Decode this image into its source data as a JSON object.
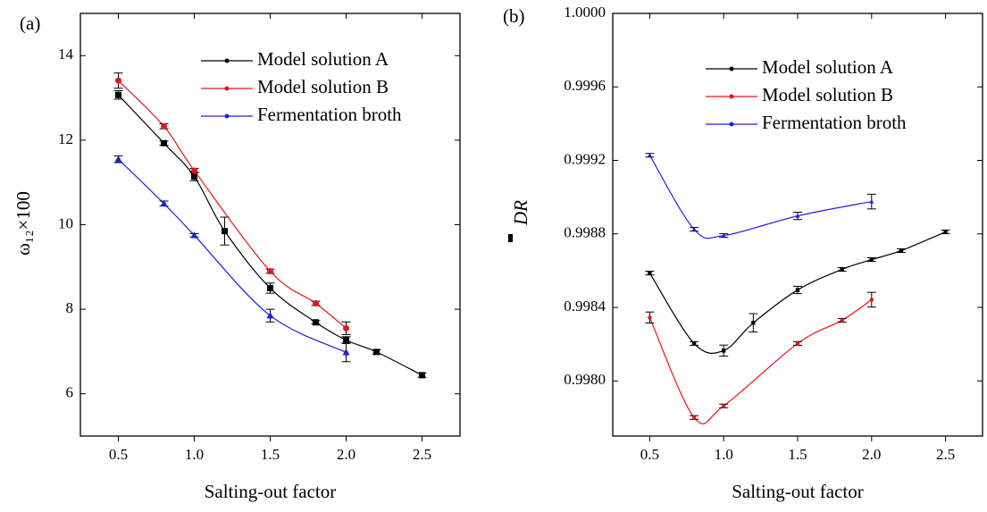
{
  "chart_data": [
    {
      "type": "line",
      "panel_label": "(a)",
      "x_label": "Salting-out factor",
      "y_label": "ω₁₂×100",
      "xlim": [
        0.25,
        2.75
      ],
      "xticks": [
        0.5,
        {
          "value": 1,
          "label": "1.0"
        },
        1.5,
        {
          "value": 2,
          "label": "2.0"
        },
        2.5
      ],
      "ylim": [
        5,
        15
      ],
      "yticks": [
        6,
        8,
        10,
        12,
        14
      ],
      "series": [
        {
          "name": "Model solution A",
          "color": "#000000",
          "marker": "square",
          "x": [
            0.5,
            0.8,
            1.0,
            1.2,
            1.5,
            1.8,
            2.0,
            2.2,
            2.5
          ],
          "values": [
            13.07,
            11.93,
            11.14,
            9.85,
            8.5,
            7.69,
            7.27,
            6.99,
            6.44
          ],
          "errors": [
            0.1,
            0.05,
            0.1,
            0.33,
            0.12,
            0.04,
            0.08,
            0.05,
            0.05
          ]
        },
        {
          "name": "Model solution B",
          "color": "#e8141a",
          "marker": "circle",
          "x": [
            0.5,
            0.8,
            1.0,
            1.5,
            1.8,
            2.0
          ],
          "values": [
            13.41,
            12.33,
            11.28,
            8.9,
            8.14,
            7.55
          ],
          "errors": [
            0.18,
            0.06,
            0.05,
            0.05,
            0.05,
            0.15
          ]
        },
        {
          "name": "Fermentation broth",
          "color": "#1f1fe0",
          "marker": "triangle",
          "x": [
            0.5,
            0.8,
            1.0,
            1.5,
            2.0
          ],
          "values": [
            11.55,
            10.5,
            9.75,
            7.85,
            6.98
          ],
          "errors": [
            0.08,
            0.06,
            0.04,
            0.15,
            0.22
          ]
        }
      ]
    },
    {
      "type": "line",
      "panel_label": "(b)",
      "x_label": "Salting-out factor",
      "y_label": "DR",
      "xlim": [
        0.25,
        2.75
      ],
      "xticks": [
        0.5,
        {
          "value": 1,
          "label": "1.0"
        },
        1.5,
        {
          "value": 2,
          "label": "2.0"
        },
        2.5
      ],
      "ylim": [
        0.9977,
        1.0
      ],
      "yticks": [
        {
          "value": 0.998,
          "label": "0.9980"
        },
        0.9984,
        0.9988,
        0.9992,
        0.9996,
        {
          "value": 1,
          "label": "1.0000"
        }
      ],
      "series": [
        {
          "name": "Model solution A",
          "color": "#000000",
          "marker": "square",
          "x": [
            0.5,
            0.8,
            1.0,
            1.2,
            1.5,
            1.8,
            2.0,
            2.2,
            2.5
          ],
          "values": [
            0.998587,
            0.998204,
            0.998165,
            0.998316,
            0.998495,
            0.998607,
            0.99866,
            0.998709,
            0.998811
          ],
          "errors": [
            1e-05,
            1e-05,
            3e-05,
            5e-05,
            2e-05,
            1e-05,
            1e-05,
            1e-05,
            1e-05
          ]
        },
        {
          "name": "Model solution B",
          "color": "#e8141a",
          "marker": "circle",
          "x": [
            0.5,
            0.8,
            1.0,
            1.5,
            1.8,
            2.0
          ],
          "values": [
            0.998345,
            0.997801,
            0.997864,
            0.998204,
            0.99833,
            0.998442
          ],
          "errors": [
            3e-05,
            1e-05,
            1e-05,
            1e-05,
            1e-05,
            4e-05
          ]
        },
        {
          "name": "Fermentation broth",
          "color": "#1f1fe0",
          "marker": "triangle",
          "x": [
            0.5,
            0.8,
            1.0,
            1.5,
            2.0
          ],
          "values": [
            0.999228,
            0.998825,
            0.998791,
            0.998898,
            0.998976
          ],
          "errors": [
            1e-05,
            1e-05,
            1e-05,
            2e-05,
            4e-05
          ]
        }
      ]
    }
  ]
}
